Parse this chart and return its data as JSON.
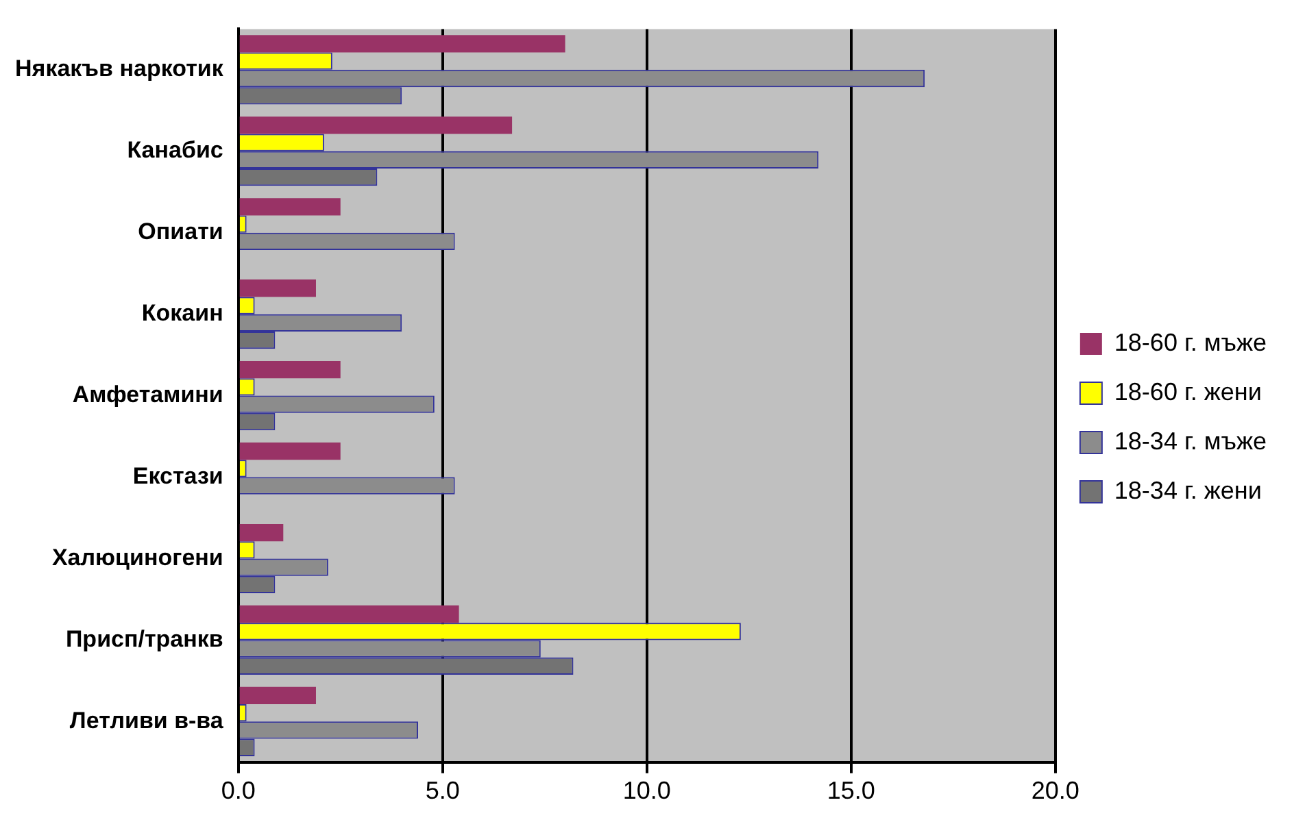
{
  "chart_data": {
    "type": "bar",
    "orientation": "horizontal",
    "categories": [
      "Някакъв наркотик",
      "Канабис",
      "Опиати",
      "Кокаин",
      "Амфетамини",
      "Екстази",
      "Халюциногени",
      "Присп/транкв",
      "Летливи в-ва"
    ],
    "series": [
      {
        "name": "18-60 г. мъже",
        "color": "#993366",
        "values": [
          8.0,
          6.7,
          2.5,
          1.9,
          2.5,
          2.5,
          1.1,
          5.4,
          1.9
        ]
      },
      {
        "name": "18-60 г. жени",
        "color": "#ffff00",
        "values": [
          2.3,
          2.1,
          0.2,
          0.4,
          0.4,
          0.2,
          0.4,
          12.3,
          0.2
        ]
      },
      {
        "name": "18-34 г. мъже",
        "color": "#8c8c8c",
        "values": [
          16.8,
          14.2,
          5.3,
          4.0,
          4.8,
          5.3,
          2.2,
          7.4,
          4.4
        ]
      },
      {
        "name": "18-34 г. жени",
        "color": "#737373",
        "values": [
          4.0,
          3.4,
          0,
          0.9,
          0.9,
          0,
          0.9,
          8.2,
          0.4
        ]
      }
    ],
    "xlim": [
      0,
      20
    ],
    "xticks": [
      {
        "value": 0,
        "label": "0.0"
      },
      {
        "value": 5,
        "label": "5.0"
      },
      {
        "value": 10,
        "label": "10.0"
      },
      {
        "value": 15,
        "label": "15.0"
      },
      {
        "value": 20,
        "label": "20.0"
      }
    ],
    "grid": "x",
    "legend": "right"
  }
}
